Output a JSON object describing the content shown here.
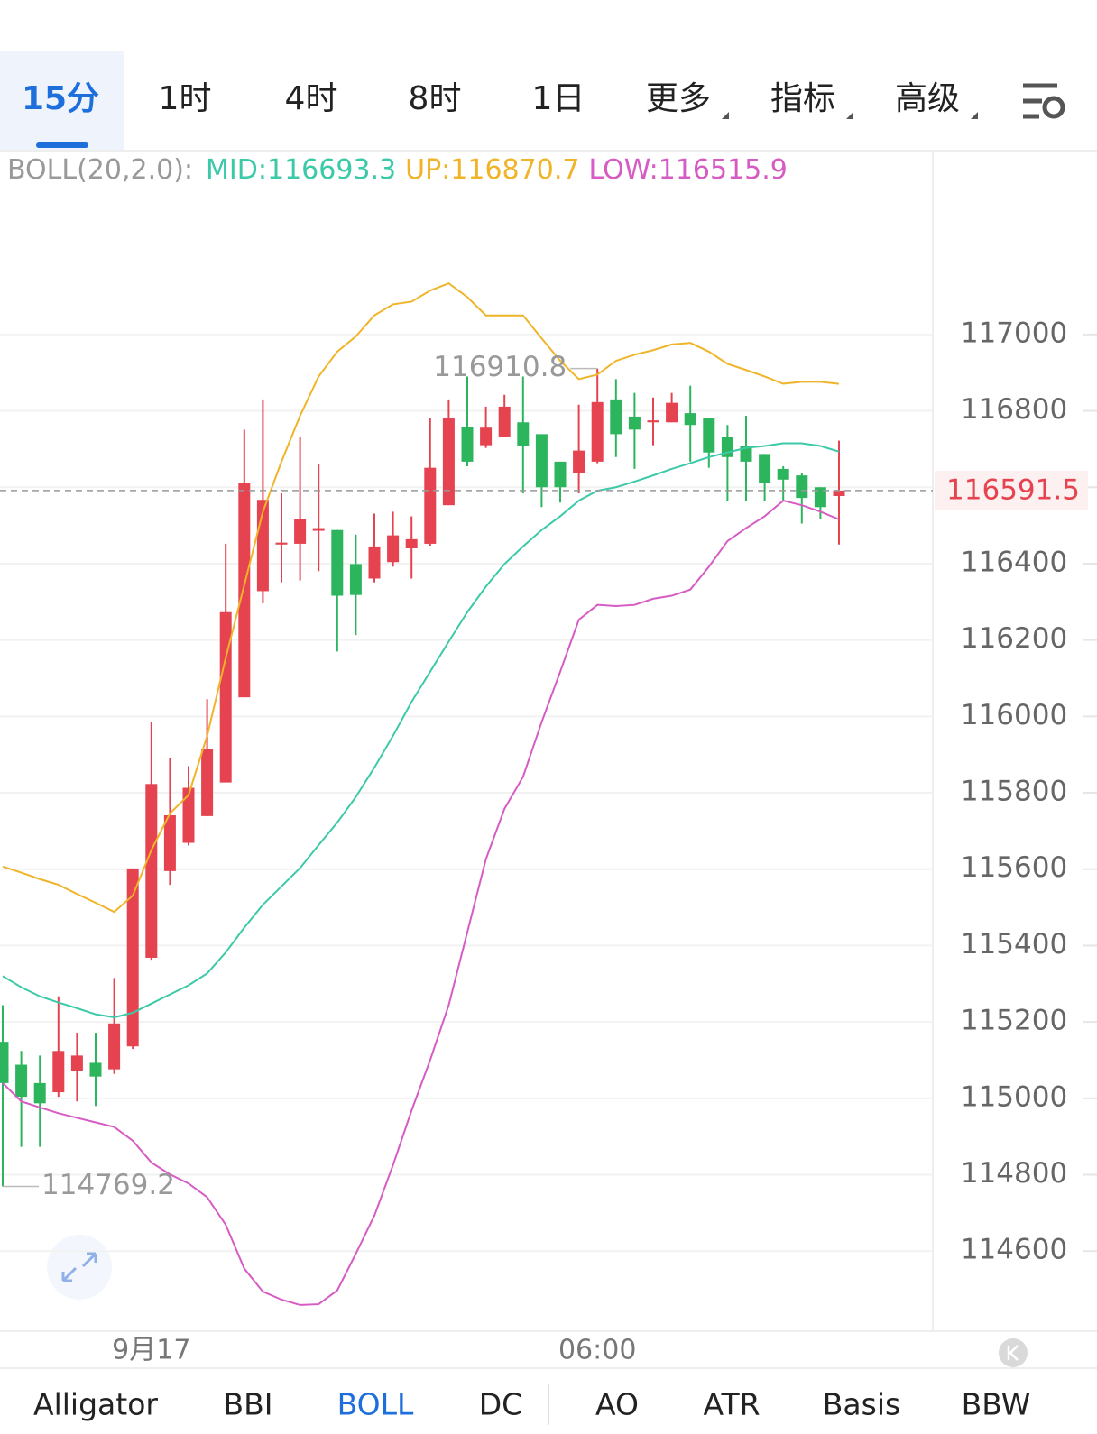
{
  "tabs": [
    "15分",
    "1时",
    "4时",
    "8时",
    "1日",
    "更多",
    "指标",
    "高级"
  ],
  "active_tab_index": 0,
  "indicator_tabs": [
    "Alligator",
    "BBI",
    "BOLL",
    "DC",
    "AO",
    "ATR",
    "Basis",
    "BBW"
  ],
  "active_indicator_index": 2,
  "chart_data": {
    "type": "candlestick",
    "indicator": "BOLL(20,2.0):",
    "categories": [
      null,
      null,
      null,
      null,
      null,
      null,
      null,
      null,
      "9月17",
      null,
      null,
      null,
      null,
      null,
      null,
      null,
      null,
      null,
      null,
      null,
      null,
      null,
      null,
      null,
      null,
      null,
      null,
      null,
      null,
      null,
      null,
      null,
      "06:00",
      null,
      null,
      null,
      null,
      null,
      null,
      null,
      null,
      null,
      null,
      null,
      null,
      null
    ],
    "open": [
      115148,
      115088,
      115040,
      115016,
      115071,
      115093,
      115076,
      115136,
      115368,
      115595,
      115669,
      115739,
      115827,
      116050,
      116328,
      116450,
      116452,
      116486,
      116488,
      116399,
      116361,
      116404,
      116440,
      116452,
      116553,
      116758,
      116710,
      116732,
      116770,
      116739,
      116667,
      116636,
      116667,
      116830,
      116785,
      116770,
      116770,
      116794,
      116780,
      116732,
      116708,
      116687,
      116648,
      116631,
      116600,
      116577
    ],
    "high": [
      115244,
      115124,
      115112,
      115267,
      115172,
      115172,
      115315,
      115602,
      115985,
      115890,
      115870,
      116045,
      116452,
      116751,
      116830,
      116584,
      116732,
      116660,
      116488,
      116476,
      116531,
      116536,
      116524,
      116780,
      116830,
      116890,
      116811,
      116842,
      116890,
      116739,
      116667,
      116816,
      116910.8,
      116883,
      116847,
      116835,
      116847,
      116866,
      116780,
      116763,
      116787,
      116687,
      116655,
      116636,
      116600,
      116722
    ],
    "low": [
      114769.2,
      114873,
      114873,
      115004,
      114992,
      114980,
      115064,
      115129,
      115363,
      115559,
      115662,
      115739,
      115827,
      116050,
      116296,
      116351,
      116356,
      116380,
      116170,
      116213,
      116351,
      116392,
      116361,
      116447,
      116553,
      116655,
      116703,
      116732,
      116584,
      116548,
      116560,
      116584,
      116663,
      116679,
      116648,
      116710,
      116770,
      116667,
      116651,
      116564,
      116564,
      116564,
      116564,
      116505,
      116517,
      116450
    ],
    "close": [
      115040,
      115004,
      114987,
      115124,
      115112,
      115057,
      115196,
      115602,
      115823,
      115741,
      115813,
      115914,
      116273,
      116612,
      116567,
      116455,
      116517,
      116493,
      116316,
      116318,
      116445,
      116474,
      116464,
      116651,
      116780,
      116667,
      116756,
      116811,
      116708,
      116600,
      116600,
      116696,
      116823,
      116739,
      116751,
      116775,
      116821,
      116763,
      116691,
      116679,
      116667,
      116612,
      116620,
      116572,
      116548,
      116591.5
    ],
    "up_color": "#e5434f",
    "down_color": "#2db55d",
    "series": [
      {
        "name": "MID:",
        "color": "#3cc9a8",
        "values": [
          115320,
          115291,
          115267,
          115251,
          115236,
          115220,
          115212,
          115224,
          115248,
          115272,
          115296,
          115327,
          115382,
          115447,
          115507,
          115555,
          115603,
          115663,
          115722,
          115789,
          115866,
          115949,
          116038,
          116117,
          116196,
          116273,
          116340,
          116399,
          116445,
          116488,
          116524,
          116565,
          116591,
          116600,
          116615,
          116631,
          116648,
          116663,
          116679,
          116691,
          116703,
          116708,
          116715,
          116715,
          116708,
          116693.3
        ]
      },
      {
        "name": "UP:",
        "color": "#f0b429",
        "values": [
          115607,
          115591,
          115574,
          115559,
          115535,
          115512,
          115488,
          115531,
          115650,
          115746,
          115794,
          115949,
          116153,
          116344,
          116536,
          116667,
          116787,
          116890,
          116955,
          116995,
          117050,
          117079,
          117086,
          117115,
          117134,
          117098,
          117050,
          117050,
          117050,
          116990,
          116931,
          116883,
          116895,
          116931,
          116947,
          116959,
          116974,
          116978,
          116955,
          116923,
          116907,
          116890,
          116871,
          116876,
          116876,
          116870.7
        ]
      },
      {
        "name": "LOW:",
        "color": "#d65cc4",
        "values": [
          115040,
          114992,
          114976,
          114961,
          114949,
          114937,
          114925,
          114889,
          114832,
          114801,
          114777,
          114741,
          114669,
          114554,
          114494,
          114473,
          114459,
          114461,
          114497,
          114593,
          114693,
          114825,
          114968,
          115100,
          115244,
          115435,
          115626,
          115758,
          115842,
          115985,
          116117,
          116253,
          116292,
          116289,
          116292,
          116308,
          116316,
          116332,
          116392,
          116459,
          116493,
          116524,
          116565,
          116553,
          116536,
          116515.9
        ]
      }
    ],
    "ylim": [
      114400,
      117480
    ],
    "yticks": [
      114600,
      114800,
      115000,
      115200,
      115400,
      115600,
      115800,
      116000,
      116200,
      116400,
      116600,
      116800,
      117000
    ],
    "grid": true
  }
}
